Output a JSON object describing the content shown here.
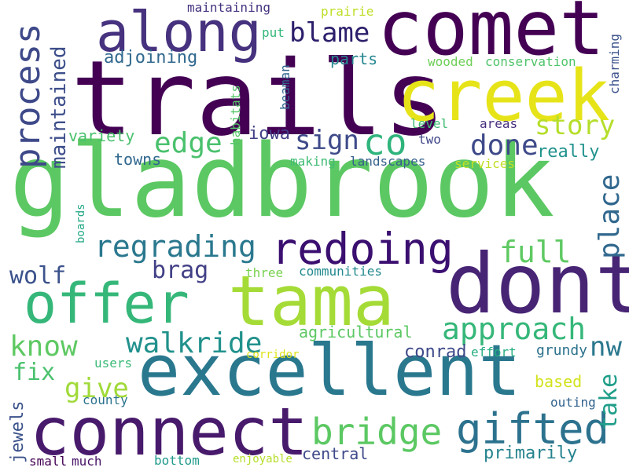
{
  "words": [
    {
      "text": "gladbrook",
      "color": "#5cc863"
    },
    {
      "text": "trails",
      "color": "#440154"
    },
    {
      "text": "comet",
      "color": "#440154"
    },
    {
      "text": "creek",
      "color": "#e6e419"
    },
    {
      "text": "along",
      "color": "#46327e"
    },
    {
      "text": "dont",
      "color": "#482475"
    },
    {
      "text": "excellent",
      "color": "#2a788e"
    },
    {
      "text": "connect",
      "color": "#481a6c"
    },
    {
      "text": "tama",
      "color": "#a5db36"
    },
    {
      "text": "offer",
      "color": "#35b779"
    },
    {
      "text": "redoing",
      "color": "#3b0f70"
    },
    {
      "text": "gifted",
      "color": "#2c728e"
    },
    {
      "text": "bridge",
      "color": "#5cc863"
    },
    {
      "text": "approach",
      "color": "#35b779"
    },
    {
      "text": "process",
      "color": "#3e4989"
    },
    {
      "text": "regrading",
      "color": "#2a788e"
    },
    {
      "text": "co",
      "color": "#2fb47c"
    },
    {
      "text": "story",
      "color": "#b5de2b"
    },
    {
      "text": "done",
      "color": "#3e4a89"
    },
    {
      "text": "blame",
      "color": "#2d1e6b"
    },
    {
      "text": "place",
      "color": "#31688e"
    },
    {
      "text": "full",
      "color": "#5ec962"
    },
    {
      "text": "walkride",
      "color": "#21918c"
    },
    {
      "text": "know",
      "color": "#5ec962"
    },
    {
      "text": "edge",
      "color": "#4ac16d"
    },
    {
      "text": "sign",
      "color": "#3e4a89"
    },
    {
      "text": "maintained",
      "color": "#3d4e8a"
    },
    {
      "text": "nw",
      "color": "#2a788e"
    },
    {
      "text": "take",
      "color": "#1f9e89"
    },
    {
      "text": "wolf",
      "color": "#3b528b"
    },
    {
      "text": "brag",
      "color": "#424086"
    },
    {
      "text": "give",
      "color": "#a0da39"
    },
    {
      "text": "fix",
      "color": "#4ac16d"
    },
    {
      "text": "adjoining",
      "color": "#30688e"
    },
    {
      "text": "primarily",
      "color": "#25838e"
    },
    {
      "text": "conrad",
      "color": "#3e4989"
    },
    {
      "text": "really",
      "color": "#20928c"
    },
    {
      "text": "jewels",
      "color": "#3b528b"
    },
    {
      "text": "iowa",
      "color": "#424086"
    },
    {
      "text": "parts",
      "color": "#24868e"
    },
    {
      "text": "variety",
      "color": "#4ac16d"
    },
    {
      "text": "towns",
      "color": "#31688e"
    },
    {
      "text": "agricultural",
      "color": "#5cc863"
    },
    {
      "text": "central",
      "color": "#3e4989"
    },
    {
      "text": "based",
      "color": "#d2e21b"
    },
    {
      "text": "grundy",
      "color": "#2c728e"
    },
    {
      "text": "effort",
      "color": "#26ad81"
    },
    {
      "text": "communities",
      "color": "#23898e"
    },
    {
      "text": "three",
      "color": "#7ad151"
    },
    {
      "text": "maintaining",
      "color": "#46337f"
    },
    {
      "text": "prairie",
      "color": "#bddf26"
    },
    {
      "text": "put",
      "color": "#35b779"
    },
    {
      "text": "wooded",
      "color": "#6ece58"
    },
    {
      "text": "conservation",
      "color": "#4fc46a"
    },
    {
      "text": "charming",
      "color": "#3b528b"
    },
    {
      "text": "beaman",
      "color": "#31688e"
    },
    {
      "text": "habitats",
      "color": "#54c568"
    },
    {
      "text": "level",
      "color": "#3fbc73"
    },
    {
      "text": "areas",
      "color": "#472f7d"
    },
    {
      "text": "two",
      "color": "#404688"
    },
    {
      "text": "making",
      "color": "#3fbc73"
    },
    {
      "text": "landscapes",
      "color": "#34608d"
    },
    {
      "text": "services",
      "color": "#c0df25"
    },
    {
      "text": "boards",
      "color": "#22a785"
    },
    {
      "text": "users",
      "color": "#3aba76"
    },
    {
      "text": "county",
      "color": "#2c728e"
    },
    {
      "text": "corridor",
      "color": "#dfe318"
    },
    {
      "text": "outing",
      "color": "#33638d"
    },
    {
      "text": "small",
      "color": "#440154"
    },
    {
      "text": "much",
      "color": "#481467"
    },
    {
      "text": "bottom",
      "color": "#1f9a8a"
    },
    {
      "text": "enjoyable",
      "color": "#b5de2b"
    }
  ]
}
